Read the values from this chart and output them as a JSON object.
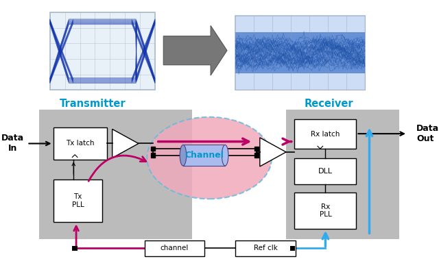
{
  "bg_color": "#ffffff",
  "transmitter_label": "Transmitter",
  "receiver_label": "Receiver",
  "data_in_label": "Data\nIn",
  "data_out_label": "Data\nOut",
  "tx_latch_label": "Tx latch",
  "tx_pll_label": "Tx\nPLL",
  "channel_label": "Channel",
  "rx_latch_label": "Rx latch",
  "dll_label": "DLL",
  "rx_pll_label": "Rx\nPLL",
  "channel_bottom_label": "channel",
  "ref_clk_label": "Ref clk",
  "arrow_color": "#bb0066",
  "blue_arrow_color": "#33aaee",
  "gray_bg": "#bbbbbb",
  "channel_circle_fill": "#f0aabb",
  "channel_circle_edge": "#66bbdd",
  "label_color_cyan": "#0099cc",
  "eye_left_bg": "#e8f0f8",
  "eye_right_bg": "#4488bb",
  "grid_color_left": "#aabbcc",
  "grid_color_right": "#6688aa"
}
